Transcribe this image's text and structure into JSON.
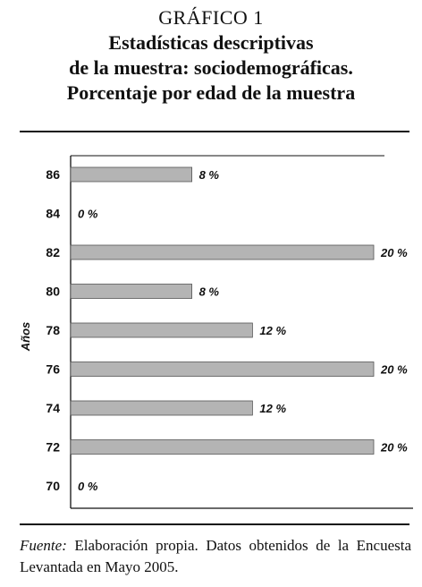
{
  "header": {
    "graf_label": "GRÁFICO 1",
    "title_lines": [
      "Estadísticas descriptivas",
      "de la muestra: sociodemográficas.",
      "Porcentaje por edad de la muestra"
    ]
  },
  "footer": {
    "source_label": "Fuente:",
    "source_text": "Elaboración propia. Datos obtenidos de la Encuesta Levantada en Mayo 2005."
  },
  "chart_data": {
    "type": "bar",
    "orientation": "horizontal",
    "ylabel": "Años",
    "categories": [
      "86",
      "84",
      "82",
      "80",
      "78",
      "76",
      "74",
      "72",
      "70"
    ],
    "values": [
      8,
      0,
      20,
      8,
      12,
      20,
      12,
      20,
      0
    ],
    "value_labels": [
      "8 %",
      "0 %",
      "20 %",
      "8 %",
      "12 %",
      "20 %",
      "12 %",
      "20 %",
      "0 %"
    ],
    "xlim": [
      0,
      20
    ],
    "bar_color": "#b4b4b4",
    "grid": false
  }
}
